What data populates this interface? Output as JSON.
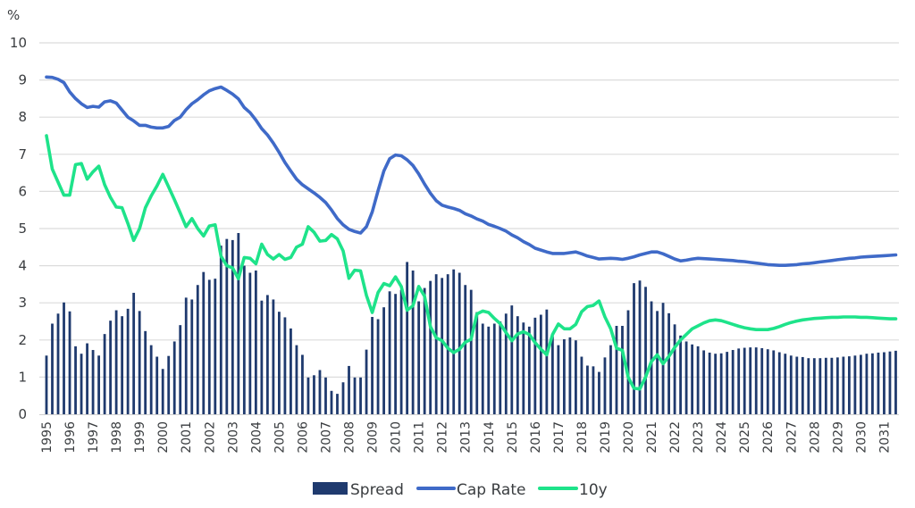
{
  "chart_data": {
    "type": "bar+line",
    "title": "",
    "ylabel": "%",
    "xlabel": "",
    "ylim": [
      0,
      10
    ],
    "yticks": [
      "0",
      "1",
      "2",
      "3",
      "4",
      "5",
      "6",
      "7",
      "8",
      "9",
      "10"
    ],
    "grid": true,
    "legend_position": "bottom",
    "frequency": "quarterly",
    "start": "1995 Q1",
    "x_tick_labels": [
      "1995",
      "1996",
      "1997",
      "1998",
      "1999",
      "2000",
      "2001",
      "2002",
      "2003",
      "2004",
      "2005",
      "2006",
      "2007",
      "2008",
      "2009",
      "2010",
      "2011",
      "2012",
      "2013",
      "2014",
      "2015",
      "2016",
      "2017",
      "2018",
      "2019",
      "2020",
      "2021",
      "2022",
      "2023",
      "2024",
      "2025",
      "2026",
      "2027",
      "2028",
      "2029",
      "2030",
      "2031"
    ],
    "series": [
      {
        "name": "Spread",
        "type": "bar",
        "color": "#1f3a6e",
        "values": [
          1.58,
          2.44,
          2.71,
          3.01,
          2.77,
          1.83,
          1.63,
          1.91,
          1.73,
          1.58,
          2.16,
          2.52,
          2.8,
          2.64,
          2.84,
          3.27,
          2.78,
          2.24,
          1.86,
          1.55,
          1.22,
          1.57,
          1.96,
          2.4,
          3.14,
          3.09,
          3.48,
          3.83,
          3.62,
          3.65,
          4.54,
          4.72,
          4.69,
          4.88,
          4.0,
          3.81,
          3.87,
          3.06,
          3.21,
          3.09,
          2.76,
          2.61,
          2.31,
          1.86,
          1.6,
          0.99,
          1.05,
          1.19,
          0.99,
          0.63,
          0.55,
          0.86,
          1.3,
          0.99,
          0.99,
          1.74,
          2.62,
          2.56,
          2.88,
          3.31,
          3.24,
          3.35,
          4.1,
          3.87,
          3.04,
          3.4,
          3.59,
          3.77,
          3.67,
          3.77,
          3.9,
          3.81,
          3.48,
          3.35,
          2.75,
          2.44,
          2.36,
          2.44,
          2.5,
          2.71,
          2.93,
          2.64,
          2.47,
          2.36,
          2.6,
          2.68,
          2.82,
          2.1,
          1.86,
          2.02,
          2.07,
          1.99,
          1.55,
          1.31,
          1.29,
          1.14,
          1.53,
          1.86,
          2.38,
          2.38,
          2.8,
          3.53,
          3.6,
          3.43,
          3.04,
          2.78,
          3.0,
          2.72,
          2.42,
          2.12,
          1.96,
          1.88,
          1.83,
          1.72,
          1.66,
          1.63,
          1.64,
          1.68,
          1.73,
          1.77,
          1.79,
          1.8,
          1.8,
          1.78,
          1.75,
          1.72,
          1.67,
          1.63,
          1.58,
          1.55,
          1.54,
          1.51,
          1.51,
          1.51,
          1.52,
          1.52,
          1.53,
          1.55,
          1.56,
          1.58,
          1.6,
          1.63,
          1.64,
          1.66,
          1.67,
          1.69,
          1.71
        ]
      },
      {
        "name": "Cap Rate",
        "type": "line",
        "color": "#3f6ac8",
        "values": [
          9.08,
          9.07,
          9.02,
          8.93,
          8.68,
          8.5,
          8.36,
          8.26,
          8.29,
          8.27,
          8.41,
          8.44,
          8.38,
          8.19,
          8.0,
          7.9,
          7.78,
          7.78,
          7.73,
          7.71,
          7.71,
          7.75,
          7.91,
          8.0,
          8.2,
          8.36,
          8.47,
          8.6,
          8.71,
          8.77,
          8.81,
          8.72,
          8.62,
          8.49,
          8.26,
          8.12,
          7.92,
          7.69,
          7.52,
          7.3,
          7.05,
          6.78,
          6.55,
          6.33,
          6.18,
          6.07,
          5.96,
          5.84,
          5.7,
          5.5,
          5.27,
          5.1,
          4.98,
          4.92,
          4.88,
          5.05,
          5.45,
          6.02,
          6.55,
          6.88,
          6.98,
          6.96,
          6.85,
          6.7,
          6.47,
          6.2,
          5.95,
          5.75,
          5.63,
          5.58,
          5.54,
          5.49,
          5.4,
          5.34,
          5.26,
          5.2,
          5.11,
          5.06,
          5.0,
          4.93,
          4.83,
          4.75,
          4.65,
          4.57,
          4.47,
          4.42,
          4.37,
          4.33,
          4.33,
          4.33,
          4.35,
          4.37,
          4.32,
          4.26,
          4.22,
          4.18,
          4.19,
          4.2,
          4.19,
          4.17,
          4.2,
          4.24,
          4.29,
          4.33,
          4.37,
          4.37,
          4.32,
          4.25,
          4.18,
          4.13,
          4.15,
          4.18,
          4.2,
          4.19,
          4.18,
          4.17,
          4.16,
          4.15,
          4.14,
          4.12,
          4.11,
          4.09,
          4.07,
          4.05,
          4.03,
          4.02,
          4.01,
          4.01,
          4.02,
          4.03,
          4.05,
          4.06,
          4.08,
          4.1,
          4.12,
          4.14,
          4.16,
          4.18,
          4.2,
          4.21,
          4.23,
          4.24,
          4.25,
          4.26,
          4.27,
          4.28,
          4.29
        ]
      },
      {
        "name": "10y",
        "type": "line",
        "color": "#1ee38a",
        "values": [
          7.5,
          6.6,
          6.25,
          5.9,
          5.9,
          6.72,
          6.75,
          6.33,
          6.53,
          6.68,
          6.18,
          5.84,
          5.58,
          5.56,
          5.14,
          4.68,
          5.0,
          5.56,
          5.88,
          6.15,
          6.46,
          6.12,
          5.78,
          5.42,
          5.05,
          5.27,
          5.0,
          4.8,
          5.07,
          5.1,
          4.26,
          4.0,
          3.94,
          3.65,
          4.22,
          4.2,
          4.05,
          4.58,
          4.3,
          4.18,
          4.3,
          4.17,
          4.22,
          4.5,
          4.58,
          5.05,
          4.9,
          4.66,
          4.68,
          4.84,
          4.72,
          4.4,
          3.66,
          3.88,
          3.86,
          3.2,
          2.74,
          3.28,
          3.52,
          3.46,
          3.7,
          3.44,
          2.8,
          2.92,
          3.44,
          3.18,
          2.36,
          2.06,
          1.98,
          1.78,
          1.66,
          1.75,
          1.94,
          2.02,
          2.7,
          2.78,
          2.74,
          2.58,
          2.44,
          2.2,
          1.98,
          2.16,
          2.22,
          2.15,
          1.93,
          1.75,
          1.6,
          2.15,
          2.43,
          2.3,
          2.3,
          2.42,
          2.76,
          2.9,
          2.93,
          3.05,
          2.62,
          2.3,
          1.78,
          1.72,
          1.0,
          0.7,
          0.68,
          1.0,
          1.42,
          1.6,
          1.36,
          1.56,
          1.8,
          2.0,
          2.15,
          2.3,
          2.38,
          2.46,
          2.52,
          2.54,
          2.52,
          2.47,
          2.42,
          2.37,
          2.33,
          2.3,
          2.28,
          2.28,
          2.28,
          2.31,
          2.36,
          2.42,
          2.47,
          2.51,
          2.54,
          2.56,
          2.58,
          2.59,
          2.6,
          2.61,
          2.61,
          2.62,
          2.62,
          2.62,
          2.61,
          2.61,
          2.6,
          2.59,
          2.58,
          2.57,
          2.57
        ]
      }
    ]
  }
}
